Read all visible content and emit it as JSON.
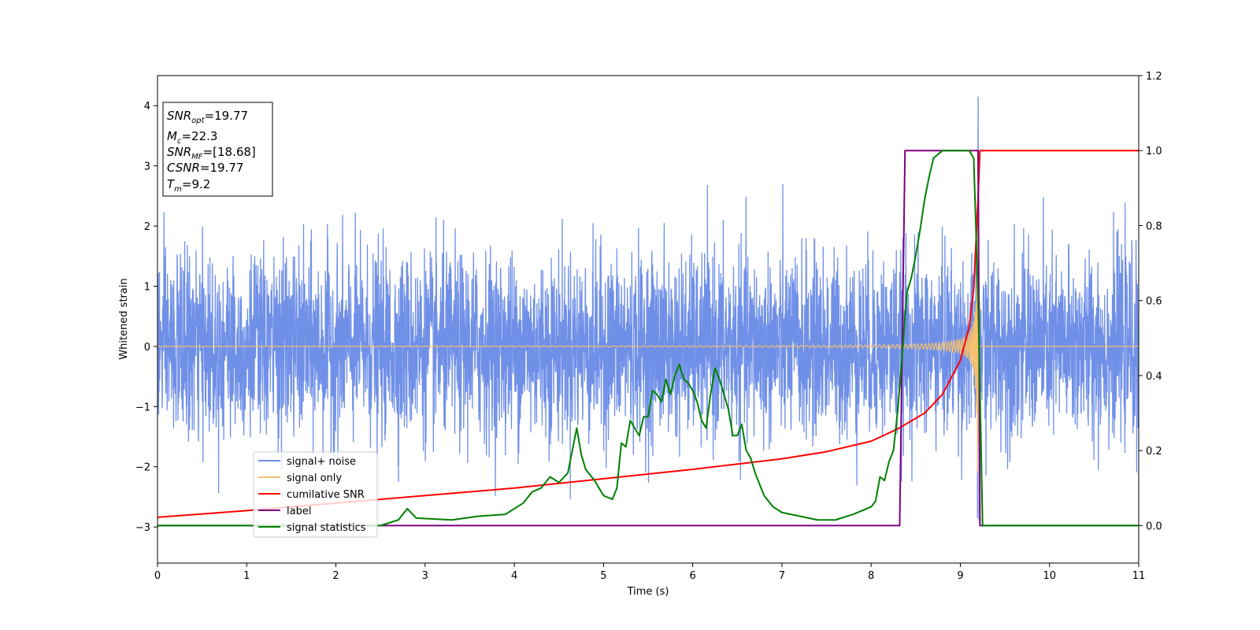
{
  "chart_data": {
    "type": "line",
    "xlabel": "Time (s)",
    "ylabel": "Whitened strain",
    "xlim": [
      0,
      11
    ],
    "ylim_left": [
      -3.6,
      4.5
    ],
    "ylim_right": [
      -0.1,
      1.2
    ],
    "x_ticks": [
      0,
      1,
      2,
      3,
      4,
      5,
      6,
      7,
      8,
      9,
      10,
      11
    ],
    "y_left_ticks": [
      -3,
      -2,
      -1,
      0,
      1,
      2,
      3,
      4
    ],
    "y_right_ticks": [
      0.0,
      0.2,
      0.4,
      0.6,
      0.8,
      1.0,
      1.2
    ],
    "legend_placement": "lower-left",
    "info_box": {
      "lines": [
        {
          "symbol": "SNR",
          "sub": "opt",
          "value": "=19.77"
        },
        {
          "symbol": "M",
          "sub": "c",
          "value": "=22.3"
        },
        {
          "symbol": "SNR",
          "sub": "MF",
          "value": "=[18.68]"
        },
        {
          "symbol": "CSNR",
          "sub": "",
          "value": "=19.77"
        },
        {
          "symbol": "T",
          "sub": "m",
          "value": "=9.2"
        }
      ]
    },
    "series": [
      {
        "name": "signal+ noise",
        "axis": "left",
        "color": "#7090e8",
        "description_values": {
          "noise_std": 0.75,
          "peak_time": 9.2,
          "peak_value": 4.15
        }
      },
      {
        "name": "signal only",
        "axis": "left",
        "color": "#f5c070",
        "description_values": {
          "chirp_end": 9.2,
          "min_value": -3.2
        }
      },
      {
        "name": "cumilative SNR",
        "axis": "right",
        "color": "#ff0000",
        "x": [
          0,
          1,
          2,
          3,
          4,
          5,
          6,
          7,
          7.5,
          8,
          8.3,
          8.6,
          8.8,
          9.0,
          9.1,
          9.15,
          9.2,
          9.22,
          11
        ],
        "y": [
          0.022,
          0.04,
          0.06,
          0.08,
          0.1,
          0.125,
          0.15,
          0.178,
          0.197,
          0.225,
          0.258,
          0.3,
          0.35,
          0.44,
          0.53,
          0.63,
          0.88,
          1.0,
          1.0
        ]
      },
      {
        "name": "label",
        "axis": "right",
        "color": "#800080",
        "x": [
          0,
          8.32,
          8.38,
          9.2,
          9.22,
          11
        ],
        "y": [
          0.0,
          0.0,
          1.0,
          1.0,
          0.0,
          0.0
        ]
      },
      {
        "name": "signal statistics",
        "axis": "right",
        "color": "#008000",
        "x": [
          0,
          2.5,
          2.7,
          2.8,
          2.9,
          3.3,
          3.6,
          3.9,
          4.1,
          4.2,
          4.3,
          4.4,
          4.5,
          4.6,
          4.65,
          4.7,
          4.75,
          4.8,
          4.9,
          5.0,
          5.1,
          5.15,
          5.2,
          5.25,
          5.3,
          5.35,
          5.4,
          5.45,
          5.5,
          5.55,
          5.6,
          5.65,
          5.7,
          5.75,
          5.8,
          5.85,
          5.9,
          5.95,
          6.0,
          6.05,
          6.1,
          6.15,
          6.2,
          6.25,
          6.3,
          6.35,
          6.4,
          6.45,
          6.5,
          6.55,
          6.6,
          6.65,
          6.7,
          6.75,
          6.8,
          6.9,
          7.0,
          7.2,
          7.4,
          7.6,
          7.8,
          7.9,
          8.0,
          8.05,
          8.1,
          8.15,
          8.2,
          8.25,
          8.3,
          8.35,
          8.4,
          8.45,
          8.5,
          8.55,
          8.6,
          8.65,
          8.7,
          8.75,
          8.8,
          8.9,
          9.0,
          9.1,
          9.15,
          9.2,
          9.25,
          9.3,
          11
        ],
        "y": [
          0.0,
          0.0,
          0.015,
          0.045,
          0.02,
          0.015,
          0.025,
          0.03,
          0.06,
          0.09,
          0.1,
          0.13,
          0.115,
          0.14,
          0.2,
          0.26,
          0.19,
          0.15,
          0.12,
          0.08,
          0.07,
          0.1,
          0.22,
          0.21,
          0.28,
          0.26,
          0.24,
          0.29,
          0.29,
          0.36,
          0.35,
          0.33,
          0.39,
          0.35,
          0.4,
          0.43,
          0.39,
          0.38,
          0.36,
          0.33,
          0.28,
          0.26,
          0.35,
          0.42,
          0.39,
          0.35,
          0.31,
          0.24,
          0.24,
          0.27,
          0.2,
          0.18,
          0.14,
          0.11,
          0.08,
          0.05,
          0.035,
          0.025,
          0.015,
          0.015,
          0.03,
          0.04,
          0.05,
          0.065,
          0.13,
          0.12,
          0.17,
          0.2,
          0.31,
          0.46,
          0.62,
          0.66,
          0.72,
          0.79,
          0.87,
          0.93,
          0.98,
          0.99,
          1.0,
          1.0,
          1.0,
          1.0,
          0.98,
          0.6,
          0.0,
          0.0,
          0.0
        ]
      }
    ]
  }
}
